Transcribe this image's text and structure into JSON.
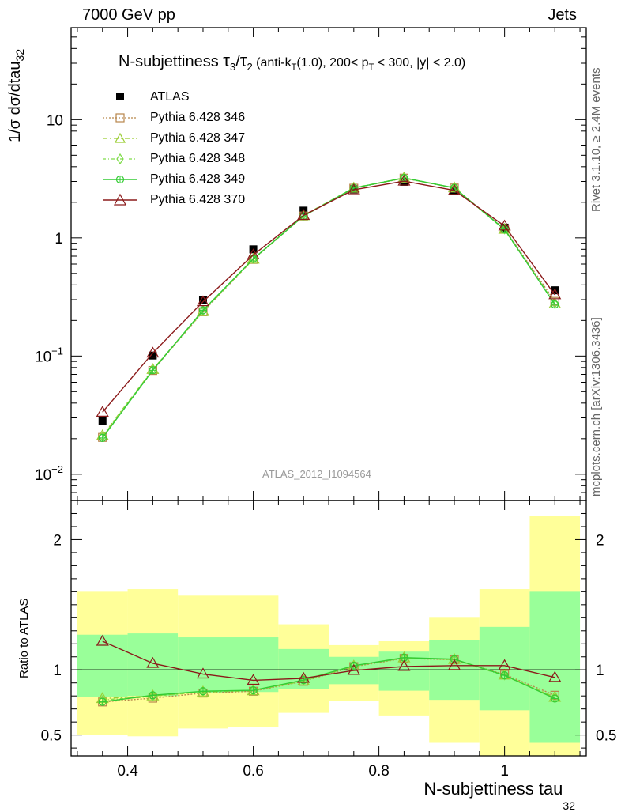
{
  "header": {
    "left": "7000 GeV pp",
    "right": "Jets"
  },
  "side_labels": {
    "rivet": "Rivet 3.1.10, ≥ 2.4M events",
    "mcplots": "mcplots.cern.ch [arXiv:1306.3436]"
  },
  "watermark": "ATLAS_2012_I1094564",
  "colors": {
    "ATLAS": "#000000",
    "Pythia 6.428 346": "#b8864b",
    "Pythia 6.428 347": "#9acd32",
    "Pythia 6.428 348": "#7fdc4a",
    "Pythia 6.428 349": "#33cc33",
    "Pythia 6.428 370": "#8b1a1a",
    "band_inner": "#99ff99",
    "band_outer": "#ffff99"
  },
  "chart_data": [
    {
      "type": "line",
      "title": "N-subjettiness τ₃/τ₂ (anti-k_T(1.0), 200< p_T < 300, |y| < 2.0)",
      "title_parts": {
        "main": "N-subjettiness ",
        "tau3": "τ",
        "sub3": "3",
        "slash": "/",
        "tau2": "τ",
        "sub2": "2",
        "rest1": " (anti-k",
        "subT1": "T",
        "rest2": "(1.0), 200< p",
        "subT2": "T",
        "rest3": " < 300, |y| < 2.0)"
      },
      "ylabel": "1/σ dσ/dtau",
      "ylabel_sub": "32",
      "yscale": "log",
      "ylim": [
        0.006,
        60
      ],
      "xlim": [
        0.31,
        1.13
      ],
      "y_ticks": [
        {
          "v": 0.01,
          "base": "10",
          "exp": "−2"
        },
        {
          "v": 0.1,
          "base": "10",
          "exp": "−1"
        },
        {
          "v": 1,
          "base": "1",
          "exp": ""
        },
        {
          "v": 10,
          "base": "10",
          "exp": ""
        }
      ],
      "legend_position": "top-left",
      "x": [
        0.36,
        0.44,
        0.52,
        0.6,
        0.68,
        0.76,
        0.84,
        0.92,
        1.0,
        1.08
      ],
      "series": [
        {
          "name": "ATLAS",
          "marker": "filled-square",
          "values": [
            0.028,
            0.101,
            0.298,
            0.8,
            1.7,
            2.58,
            2.98,
            2.48,
            1.22,
            0.36
          ]
        },
        {
          "name": "Pythia 6.428 346",
          "marker": "open-square",
          "dash": "2,2",
          "values": [
            0.0205,
            0.0755,
            0.237,
            0.657,
            1.53,
            2.63,
            3.2,
            2.64,
            1.19,
            0.29
          ]
        },
        {
          "name": "Pythia 6.428 347",
          "marker": "open-triangle",
          "dash": "6,3,2,3",
          "values": [
            0.0212,
            0.077,
            0.238,
            0.66,
            1.54,
            2.64,
            3.21,
            2.65,
            1.18,
            0.276
          ]
        },
        {
          "name": "Pythia 6.428 348",
          "marker": "open-diamond",
          "dash": "4,3,1,3",
          "values": [
            0.0208,
            0.0765,
            0.24,
            0.665,
            1.55,
            2.65,
            3.22,
            2.64,
            1.17,
            0.278
          ]
        },
        {
          "name": "Pythia 6.428 349",
          "marker": "open-circle-cross",
          "dash": "",
          "values": [
            0.0203,
            0.0758,
            0.244,
            0.664,
            1.53,
            2.64,
            3.21,
            2.65,
            1.18,
            0.273
          ]
        },
        {
          "name": "Pythia 6.428 370",
          "marker": "open-triangle",
          "dash": "",
          "values": [
            0.0335,
            0.106,
            0.288,
            0.717,
            1.55,
            2.55,
            3.02,
            2.52,
            1.26,
            0.33
          ]
        }
      ]
    },
    {
      "type": "line",
      "ylabel": "Ratio to ATLAS",
      "xlabel": "N-subjettiness tau",
      "xlabel_sub": "32",
      "ylim": [
        0.34,
        2.3
      ],
      "xlim": [
        0.31,
        1.13
      ],
      "x_ticks": [
        0.4,
        0.6,
        0.8,
        1.0
      ],
      "x_tick_labels": [
        "0.4",
        "0.6",
        "0.8",
        "1"
      ],
      "y_ticks": [
        0.5,
        1,
        2
      ],
      "y_tick_labels": [
        "0.5",
        "1",
        "2"
      ],
      "bins": [
        [
          0.32,
          0.4
        ],
        [
          0.4,
          0.48
        ],
        [
          0.48,
          0.56
        ],
        [
          0.56,
          0.64
        ],
        [
          0.64,
          0.72
        ],
        [
          0.72,
          0.8
        ],
        [
          0.8,
          0.88
        ],
        [
          0.88,
          0.96
        ],
        [
          0.96,
          1.04
        ],
        [
          1.04,
          1.12
        ]
      ],
      "band_inner": [
        [
          0.79,
          1.27
        ],
        [
          0.8,
          1.28
        ],
        [
          0.82,
          1.25
        ],
        [
          0.83,
          1.25
        ],
        [
          0.85,
          1.16
        ],
        [
          0.89,
          1.1
        ],
        [
          0.84,
          1.14
        ],
        [
          0.77,
          1.23
        ],
        [
          0.69,
          1.33
        ],
        [
          0.44,
          1.6
        ]
      ],
      "band_outer": [
        [
          0.5,
          1.6
        ],
        [
          0.49,
          1.62
        ],
        [
          0.55,
          1.57
        ],
        [
          0.56,
          1.57
        ],
        [
          0.67,
          1.35
        ],
        [
          0.76,
          1.19
        ],
        [
          0.65,
          1.22
        ],
        [
          0.44,
          1.4
        ],
        [
          0.31,
          1.62
        ],
        [
          0.31,
          2.18
        ]
      ],
      "x": [
        0.36,
        0.44,
        0.52,
        0.6,
        0.68,
        0.76,
        0.84,
        0.92,
        1.0,
        1.08
      ],
      "series": [
        {
          "name": "Pythia 6.428 346",
          "values": [
            0.754,
            0.783,
            0.822,
            0.836,
            0.912,
            1.025,
            1.088,
            1.077,
            0.965,
            0.805
          ]
        },
        {
          "name": "Pythia 6.428 347",
          "values": [
            0.78,
            0.8,
            0.83,
            0.84,
            0.915,
            1.03,
            1.092,
            1.08,
            0.96,
            0.79
          ]
        },
        {
          "name": "Pythia 6.428 348",
          "values": [
            0.77,
            0.795,
            0.834,
            0.842,
            0.918,
            1.03,
            1.09,
            1.078,
            0.955,
            0.785
          ]
        },
        {
          "name": "Pythia 6.428 349",
          "values": [
            0.755,
            0.805,
            0.836,
            0.843,
            0.922,
            1.032,
            1.094,
            1.082,
            0.958,
            0.78
          ]
        },
        {
          "name": "Pythia 6.428 370",
          "values": [
            1.22,
            1.05,
            0.968,
            0.92,
            0.935,
            0.996,
            1.026,
            1.033,
            1.033,
            0.942
          ]
        }
      ]
    }
  ]
}
